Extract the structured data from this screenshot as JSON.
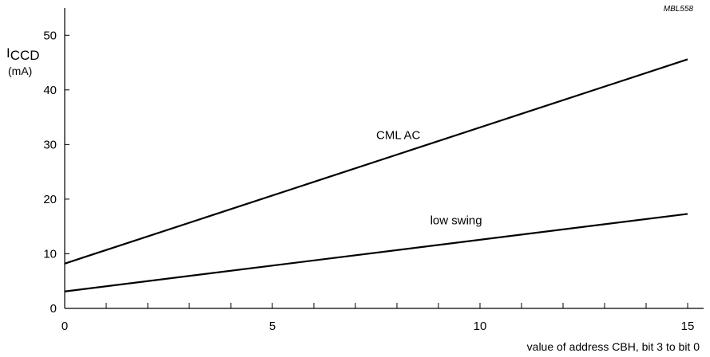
{
  "chart_data": {
    "type": "line",
    "code_label": "MBL558",
    "ylabel": {
      "symbol": "I",
      "subscript": "CCD",
      "unit": "(mA)"
    },
    "xlabel": "value of address CBH, bit 3 to bit 0",
    "xlim": [
      0,
      15.5
    ],
    "ylim": [
      0,
      55
    ],
    "x_ticks": [
      0,
      5,
      10,
      15
    ],
    "x_minor_ticks": [
      1,
      2,
      3,
      4,
      6,
      7,
      8,
      9,
      11,
      12,
      13,
      14
    ],
    "y_ticks": [
      0,
      10,
      20,
      30,
      40,
      50
    ],
    "series": [
      {
        "name": "CML AC",
        "x": [
          0,
          15
        ],
        "values": [
          8.2,
          45.6
        ],
        "label_at": [
          7.5,
          31.0
        ]
      },
      {
        "name": "low swing",
        "x": [
          0,
          15
        ],
        "values": [
          3.1,
          17.3
        ],
        "label_at": [
          8.8,
          15.4
        ]
      }
    ]
  }
}
